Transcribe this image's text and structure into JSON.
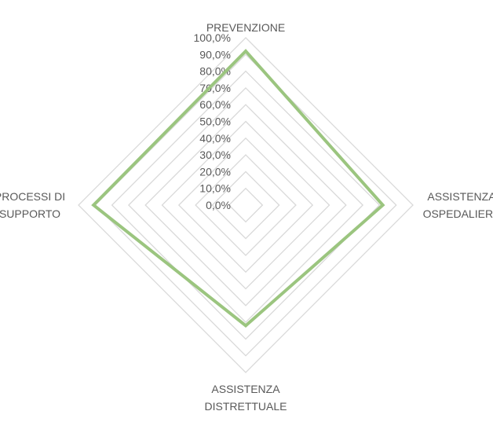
{
  "chart_data": {
    "type": "radar",
    "title": "",
    "categories": [
      {
        "lines": [
          "PREVENZIONE"
        ]
      },
      {
        "lines": [
          "ASSISTENZA",
          "OSPEDALIERA"
        ]
      },
      {
        "lines": [
          "ASSISTENZA",
          "DISTRETTUALE"
        ]
      },
      {
        "lines": [
          "PROCESSI DI",
          "SUPPORTO"
        ]
      }
    ],
    "series": [
      {
        "values": [
          92,
          82,
          72,
          91
        ],
        "color": "#9bc57f"
      }
    ],
    "rlim": [
      0,
      100
    ],
    "tick_values": [
      0,
      10,
      20,
      30,
      40,
      50,
      60,
      70,
      80,
      90,
      100
    ],
    "tick_labels": [
      "0,0%",
      "10,0%",
      "20,0%",
      "30,0%",
      "40,0%",
      "50,0%",
      "60,0%",
      "70,0%",
      "80,0%",
      "90,0%",
      "100,0%"
    ],
    "grid": true,
    "grid_color": "#d9d9d9",
    "legend": "none"
  }
}
